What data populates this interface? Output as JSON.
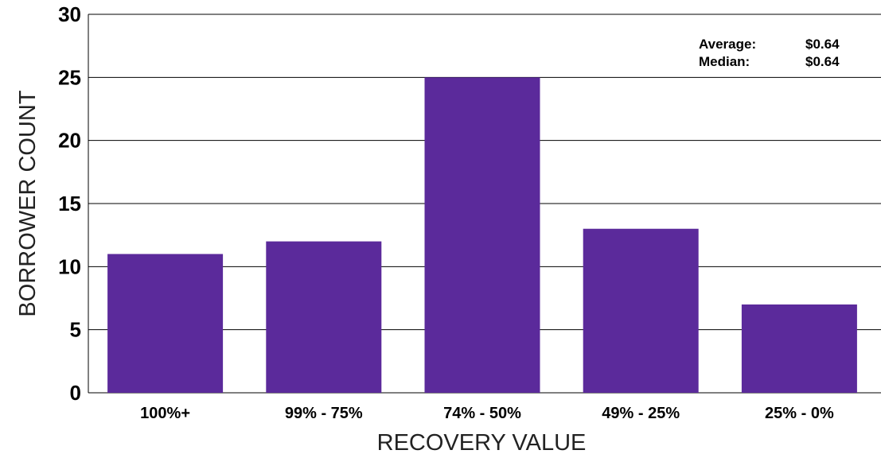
{
  "chart_data": {
    "type": "bar",
    "categories": [
      "100%+",
      "99% - 75%",
      "74% - 50%",
      "49% - 25%",
      "25% - 0%"
    ],
    "values": [
      11,
      12,
      25,
      13,
      7
    ],
    "xlabel": "RECOVERY VALUE",
    "ylabel": "BORROWER COUNT",
    "ylim": [
      0,
      30
    ],
    "yticks": [
      0,
      5,
      10,
      15,
      20,
      25,
      30
    ],
    "grid": true,
    "bar_color": "#5b2a9b",
    "stats": [
      {
        "label": "Average:",
        "value": "$0.64"
      },
      {
        "label": "Median:",
        "value": "$0.64"
      }
    ]
  }
}
